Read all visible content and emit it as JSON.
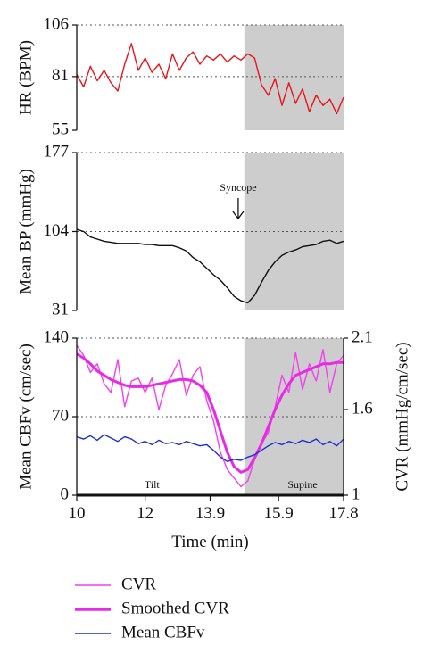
{
  "chart_data": [
    {
      "type": "line",
      "ylabel": "HR (BPM)",
      "yticks": [
        55,
        81,
        106
      ],
      "ylim": [
        55,
        106
      ],
      "xlim": [
        10,
        17.8
      ],
      "series": [
        {
          "color": "#e8141a",
          "x": [
            10.0,
            10.2,
            10.4,
            10.6,
            10.8,
            11.0,
            11.2,
            11.4,
            11.6,
            11.8,
            12.0,
            12.2,
            12.4,
            12.6,
            12.8,
            13.0,
            13.2,
            13.4,
            13.6,
            13.8,
            14.0,
            14.2,
            14.4,
            14.6,
            14.8,
            15.0,
            15.2,
            15.4,
            15.6,
            15.8,
            16.0,
            16.2,
            16.4,
            16.6,
            16.8,
            17.0,
            17.2,
            17.4,
            17.6,
            17.8
          ],
          "values": [
            82,
            76,
            86,
            79,
            84,
            78,
            74,
            87,
            97,
            84,
            90,
            83,
            87,
            80,
            92,
            84,
            90,
            93,
            87,
            91,
            89,
            92,
            88,
            91,
            89,
            92,
            90,
            77,
            72,
            80,
            67,
            78,
            68,
            75,
            64,
            72,
            67,
            70,
            63,
            71
          ]
        }
      ]
    },
    {
      "type": "line",
      "ylabel": "Mean BP (mmHg)",
      "yticks": [
        31,
        104,
        177
      ],
      "ylim": [
        31,
        177
      ],
      "xlim": [
        10,
        17.8
      ],
      "annotation": {
        "text": "Syncope",
        "x": 14.72
      },
      "series": [
        {
          "color": "#111111",
          "x": [
            10.0,
            10.2,
            10.4,
            10.6,
            10.8,
            11.0,
            11.2,
            11.4,
            11.6,
            11.8,
            12.0,
            12.2,
            12.4,
            12.6,
            12.8,
            13.0,
            13.2,
            13.4,
            13.6,
            13.8,
            14.0,
            14.2,
            14.4,
            14.6,
            14.8,
            15.0,
            15.2,
            15.4,
            15.6,
            15.8,
            16.0,
            16.2,
            16.4,
            16.6,
            16.8,
            17.0,
            17.2,
            17.4,
            17.6,
            17.8
          ],
          "values": [
            106,
            104,
            99,
            97,
            95,
            94,
            93,
            93,
            93,
            93,
            92,
            92,
            91,
            91,
            91,
            89,
            86,
            80,
            76,
            70,
            64,
            59,
            52,
            44,
            40,
            38,
            45,
            57,
            68,
            76,
            82,
            85,
            87,
            90,
            91,
            92,
            95,
            96,
            93,
            95
          ]
        }
      ]
    },
    {
      "type": "line",
      "ylabel": "Mean CBFv (cm/sec)",
      "y2label": "CVR (mmHg/cm/sec)",
      "yticks": [
        0,
        70,
        140
      ],
      "ylim": [
        0,
        140
      ],
      "y2ticks": [
        1,
        1.6,
        2.1
      ],
      "y2lim": [
        1,
        2.1
      ],
      "xlabel": "Time (min)",
      "xticks": [
        10,
        12,
        13.9,
        15.9,
        17.8
      ],
      "xlim": [
        10,
        17.8
      ],
      "annotations": [
        {
          "text": "Tilt",
          "x": 12.2
        },
        {
          "text": "Supine",
          "x": 16.6
        }
      ],
      "shaded_region": {
        "x_start": 14.9,
        "x_end": 17.8
      },
      "series": [
        {
          "name": "CVR",
          "color": "#f23ff0",
          "axis": "y2",
          "x": [
            10.0,
            10.2,
            10.4,
            10.6,
            10.8,
            11.0,
            11.2,
            11.4,
            11.6,
            11.8,
            12.0,
            12.2,
            12.4,
            12.6,
            12.8,
            13.0,
            13.2,
            13.4,
            13.6,
            13.8,
            14.0,
            14.2,
            14.4,
            14.6,
            14.8,
            15.0,
            15.2,
            15.4,
            15.6,
            15.8,
            16.0,
            16.2,
            16.4,
            16.6,
            16.8,
            17.0,
            17.2,
            17.4,
            17.6,
            17.8
          ],
          "values": [
            2.05,
            1.98,
            1.86,
            1.92,
            1.78,
            1.72,
            1.95,
            1.62,
            1.8,
            1.82,
            1.72,
            1.82,
            1.6,
            1.77,
            1.85,
            1.95,
            1.7,
            1.84,
            1.9,
            1.66,
            1.52,
            1.3,
            1.18,
            1.12,
            1.06,
            1.1,
            1.25,
            1.36,
            1.44,
            1.62,
            1.84,
            1.72,
            2.0,
            1.74,
            1.92,
            1.8,
            2.02,
            1.72,
            1.92,
            1.98
          ]
        },
        {
          "name": "Smoothed CVR",
          "color": "#e829e6",
          "axis": "y2",
          "x": [
            10.0,
            10.2,
            10.4,
            10.6,
            10.8,
            11.0,
            11.2,
            11.4,
            11.6,
            11.8,
            12.0,
            12.2,
            12.4,
            12.6,
            12.8,
            13.0,
            13.2,
            13.4,
            13.6,
            13.8,
            14.0,
            14.2,
            14.4,
            14.6,
            14.8,
            15.0,
            15.2,
            15.4,
            15.6,
            15.8,
            16.0,
            16.2,
            16.4,
            16.6,
            16.8,
            17.0,
            17.2,
            17.4,
            17.6,
            17.8
          ],
          "values": [
            1.99,
            1.96,
            1.92,
            1.87,
            1.84,
            1.81,
            1.79,
            1.77,
            1.76,
            1.76,
            1.76,
            1.77,
            1.78,
            1.79,
            1.8,
            1.81,
            1.81,
            1.8,
            1.77,
            1.72,
            1.6,
            1.45,
            1.3,
            1.2,
            1.16,
            1.18,
            1.26,
            1.36,
            1.48,
            1.6,
            1.7,
            1.78,
            1.84,
            1.86,
            1.88,
            1.9,
            1.92,
            1.92,
            1.93,
            1.93
          ]
        },
        {
          "name": "Mean CBFv",
          "color": "#1f2fd0",
          "axis": "y",
          "x": [
            10.0,
            10.2,
            10.4,
            10.6,
            10.8,
            11.0,
            11.2,
            11.4,
            11.6,
            11.8,
            12.0,
            12.2,
            12.4,
            12.6,
            12.8,
            13.0,
            13.2,
            13.4,
            13.6,
            13.8,
            14.0,
            14.2,
            14.4,
            14.6,
            14.8,
            15.0,
            15.2,
            15.4,
            15.6,
            15.8,
            16.0,
            16.2,
            16.4,
            16.6,
            16.8,
            17.0,
            17.2,
            17.4,
            17.6,
            17.8
          ],
          "values": [
            52,
            50,
            53,
            49,
            54,
            51,
            48,
            52,
            50,
            46,
            48,
            45,
            49,
            46,
            47,
            45,
            48,
            46,
            44,
            45,
            40,
            34,
            30,
            32,
            31,
            34,
            36,
            40,
            44,
            47,
            45,
            48,
            46,
            49,
            47,
            50,
            45,
            48,
            44,
            50
          ]
        }
      ]
    }
  ],
  "legend": {
    "placement": "bottom-left",
    "items": [
      {
        "label": "CVR",
        "color": "#f23ff0",
        "style": "thin"
      },
      {
        "label": "Smoothed CVR",
        "color": "#e829e6",
        "style": "thick"
      },
      {
        "label": "Mean CBFv",
        "color": "#1f2fd0",
        "style": "thin"
      }
    ]
  }
}
